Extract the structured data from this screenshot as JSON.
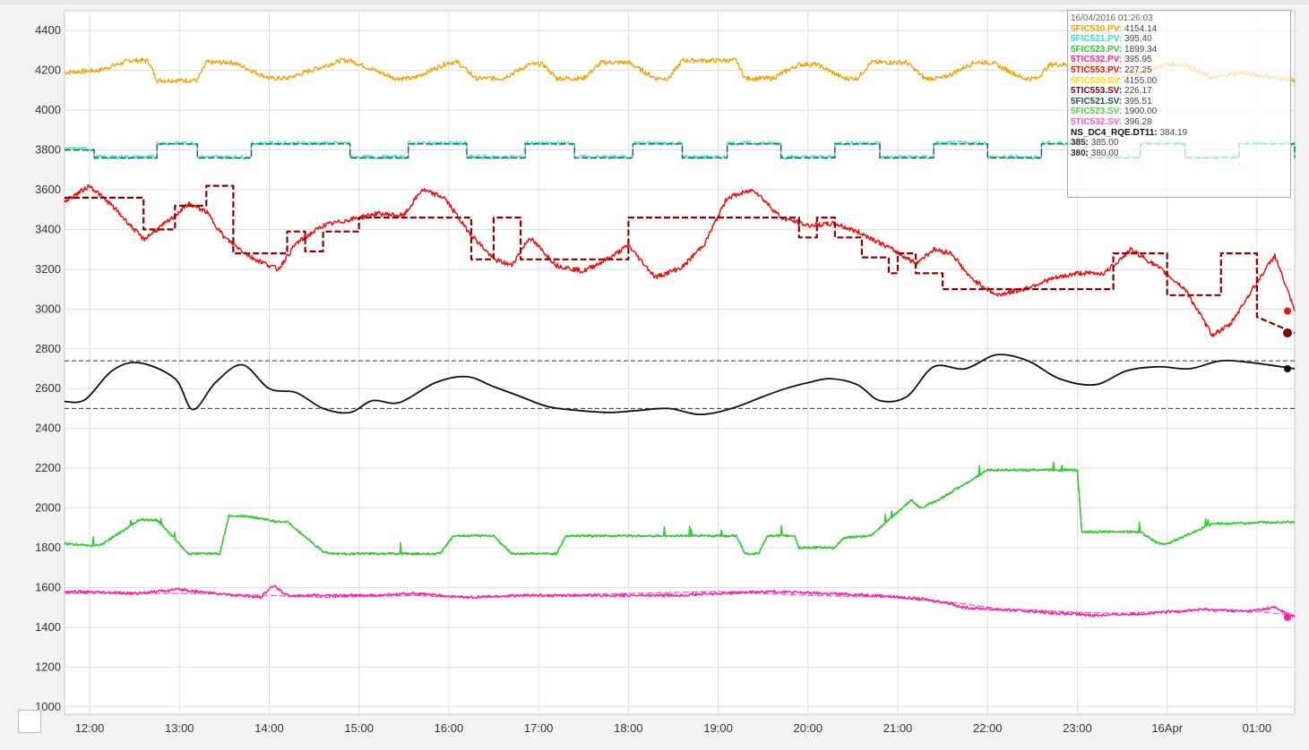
{
  "chart_data": {
    "type": "line",
    "title": "",
    "xlabel": "",
    "ylabel": "",
    "ylim": [
      1000,
      4450
    ],
    "y_ticks": [
      "1000",
      "1200",
      "1400",
      "1600",
      "1800",
      "2000",
      "2200",
      "2400",
      "2600",
      "2800",
      "3000",
      "3200",
      "3400",
      "3600",
      "3800",
      "4000",
      "4200",
      "4400"
    ],
    "x_ticks": [
      "12:00",
      "13:00",
      "14:00",
      "15:00",
      "16:00",
      "17:00",
      "18:00",
      "19:00",
      "20:00",
      "21:00",
      "22:00",
      "23:00",
      "16Apr",
      "01:00"
    ],
    "x_unit": "hours from 12:00 on 15/04/2016",
    "xlim": [
      -0.28,
      13.42
    ],
    "grid": true,
    "legend_position": "top-right",
    "legend": {
      "timestamp": "16/04/2016 01:26:03",
      "entries": [
        {
          "name": "5FIC530.PV:",
          "value": "4154.14",
          "color": "#f5a000"
        },
        {
          "name": "5FIC521.PV:",
          "value": "395.40",
          "color": "#2ee6c8"
        },
        {
          "name": "5FIC523.PV:",
          "value": "1899.34",
          "color": "#2ecc2e"
        },
        {
          "name": "5TIC532.PV:",
          "value": "395.95",
          "color": "#ff1fa0"
        },
        {
          "name": "5TIC553.PV:",
          "value": "227.25",
          "color": "#ee1111"
        },
        {
          "name": "5FIC530.SV:",
          "value": "4155.00",
          "color": "#f0e000"
        },
        {
          "name": "5TIC553.SV:",
          "value": "226.17",
          "color": "#8b0000"
        },
        {
          "name": "5FIC521.SV:",
          "value": "395.51",
          "color": "#1f4f4f"
        },
        {
          "name": "5FIC523.SV:",
          "value": "1900.00",
          "color": "#4cd44c"
        },
        {
          "name": "5TIC532.SV:",
          "value": "396.28",
          "color": "#ff55cc"
        },
        {
          "name": "NS_DC4_RQE.DT11:",
          "value": "384.19",
          "color": "#111111"
        },
        {
          "name": "385:",
          "value": "385.00",
          "color": "#333333"
        },
        {
          "name": "380:",
          "value": "380.00",
          "color": "#333333"
        }
      ]
    },
    "series": [
      {
        "key": "fic530_pv",
        "color": "#f5a000",
        "style": "solid",
        "noise": 12,
        "x": [
          -0.28,
          0.1,
          0.45,
          0.65,
          0.75,
          1.2,
          1.3,
          1.6,
          2.0,
          2.2,
          2.8,
          2.9,
          3.4,
          3.6,
          4.0,
          4.1,
          4.3,
          4.6,
          4.9,
          5.05,
          5.2,
          5.5,
          5.7,
          6.0,
          6.3,
          6.45,
          6.6,
          7.2,
          7.3,
          7.6,
          7.9,
          8.1,
          8.4,
          8.55,
          8.7,
          9.1,
          9.3,
          9.5,
          9.85,
          10.05,
          10.4,
          10.55,
          10.7,
          11.3,
          11.45,
          12.0,
          12.2,
          12.5,
          12.8,
          13.42
        ],
        "y": [
          4190,
          4200,
          4250,
          4250,
          4150,
          4150,
          4240,
          4240,
          4160,
          4160,
          4250,
          4250,
          4160,
          4160,
          4240,
          4240,
          4160,
          4160,
          4230,
          4230,
          4160,
          4160,
          4240,
          4240,
          4160,
          4160,
          4250,
          4250,
          4160,
          4160,
          4230,
          4230,
          4160,
          4160,
          4240,
          4240,
          4160,
          4160,
          4240,
          4240,
          4160,
          4160,
          4230,
          4230,
          4160,
          4230,
          4230,
          4160,
          4190,
          4150
        ]
      },
      {
        "key": "fic521_sv",
        "color": "#1f4f4f",
        "style": "dashed",
        "noise": 0,
        "step_x": [
          -0.28,
          0.05,
          0.55,
          0.75,
          1.0,
          1.2,
          1.55,
          1.8,
          2.5,
          2.9,
          3.3,
          3.55,
          4.0,
          4.2,
          4.6,
          4.85,
          5.2,
          5.4,
          5.8,
          6.05,
          6.4,
          6.6,
          6.9,
          7.1,
          7.5,
          7.7,
          8.1,
          8.3,
          8.6,
          8.8,
          9.2,
          9.4,
          9.8,
          10.0,
          10.4,
          10.6,
          10.9,
          11.1,
          11.5,
          11.7,
          12.0,
          12.2,
          12.6,
          12.8,
          13.42
        ],
        "step_y": [
          3800,
          3760,
          3760,
          3830,
          3830,
          3760,
          3760,
          3830,
          3830,
          3760,
          3760,
          3830,
          3830,
          3760,
          3760,
          3830,
          3830,
          3760,
          3760,
          3830,
          3830,
          3760,
          3760,
          3830,
          3830,
          3760,
          3760,
          3830,
          3830,
          3760,
          3760,
          3830,
          3830,
          3760,
          3760,
          3830,
          3830,
          3760,
          3760,
          3830,
          3830,
          3760,
          3760,
          3830,
          3760
        ]
      },
      {
        "key": "fic521_pv",
        "color": "#2ee6c8",
        "style": "solid",
        "noise": 10,
        "follow": "fic521_sv",
        "offset": 4
      },
      {
        "key": "tic553_sv",
        "color": "#8b0000",
        "style": "dashed",
        "noise": 0,
        "width": 2.2,
        "step_x": [
          -0.28,
          0.1,
          0.6,
          0.95,
          1.3,
          1.6,
          1.95,
          2.2,
          2.4,
          2.6,
          3.0,
          3.3,
          4.0,
          4.25,
          4.5,
          4.8,
          5.15,
          5.3,
          6.0,
          6.5,
          7.5,
          7.9,
          8.1,
          8.3,
          8.6,
          8.9,
          9.0,
          9.2,
          9.5,
          10.0,
          10.8,
          11.4,
          11.7,
          12.0,
          12.3,
          12.6,
          13.0
        ],
        "step_y": [
          3560,
          3560,
          3400,
          3520,
          3620,
          3280,
          3280,
          3390,
          3290,
          3390,
          3460,
          3460,
          3460,
          3250,
          3460,
          3250,
          3250,
          3250,
          3460,
          3460,
          3460,
          3360,
          3460,
          3360,
          3260,
          3180,
          3280,
          3180,
          3100,
          3100,
          3100,
          3280,
          3280,
          3070,
          3070,
          3280,
          2960
        ],
        "end_y": 2880,
        "end_marker": true
      },
      {
        "key": "tic553_pv",
        "color": "#ee1111",
        "style": "solid",
        "noise": 12,
        "width": 1.5,
        "x": [
          -0.28,
          0.0,
          0.25,
          0.6,
          0.9,
          1.1,
          1.3,
          1.5,
          1.8,
          2.1,
          2.3,
          2.6,
          2.9,
          3.2,
          3.5,
          3.7,
          3.95,
          4.2,
          4.5,
          4.7,
          4.9,
          5.2,
          5.5,
          5.8,
          6.0,
          6.3,
          6.6,
          6.85,
          7.1,
          7.4,
          7.7,
          8.0,
          8.3,
          8.6,
          8.9,
          9.2,
          9.4,
          9.6,
          9.8,
          10.1,
          10.4,
          10.7,
          11.0,
          11.3,
          11.6,
          11.9,
          12.2,
          12.5,
          12.7,
          12.95,
          13.2,
          13.42
        ],
        "y": [
          3540,
          3620,
          3520,
          3350,
          3450,
          3530,
          3490,
          3360,
          3260,
          3200,
          3330,
          3420,
          3450,
          3480,
          3470,
          3600,
          3560,
          3400,
          3250,
          3220,
          3360,
          3220,
          3190,
          3260,
          3320,
          3160,
          3210,
          3330,
          3560,
          3600,
          3460,
          3420,
          3430,
          3380,
          3310,
          3230,
          3300,
          3280,
          3160,
          3070,
          3100,
          3150,
          3180,
          3180,
          3300,
          3210,
          3100,
          2870,
          2920,
          3100,
          3270,
          2990
        ],
        "end_marker": true
      },
      {
        "key": "dt11",
        "color": "#111111",
        "style": "solid",
        "noise": 0,
        "width": 1.8,
        "smooth": true,
        "x": [
          -0.28,
          -0.05,
          0.25,
          0.55,
          0.95,
          1.15,
          1.4,
          1.7,
          2.0,
          2.3,
          2.6,
          2.9,
          3.15,
          3.45,
          3.85,
          4.2,
          4.5,
          4.8,
          5.1,
          5.45,
          5.8,
          6.1,
          6.45,
          6.8,
          7.15,
          7.5,
          7.75,
          8.0,
          8.25,
          8.55,
          8.8,
          9.1,
          9.4,
          9.75,
          10.1,
          10.45,
          10.8,
          11.2,
          11.55,
          11.9,
          12.25,
          12.6,
          12.95,
          13.42
        ],
        "y": [
          2535,
          2545,
          2690,
          2730,
          2650,
          2495,
          2630,
          2720,
          2600,
          2580,
          2500,
          2480,
          2540,
          2530,
          2630,
          2660,
          2610,
          2560,
          2510,
          2490,
          2480,
          2490,
          2500,
          2470,
          2500,
          2560,
          2600,
          2630,
          2650,
          2620,
          2540,
          2560,
          2710,
          2700,
          2770,
          2740,
          2650,
          2620,
          2690,
          2710,
          2700,
          2740,
          2730,
          2700
        ],
        "end_marker": true
      },
      {
        "key": "limit_385",
        "color": "#333333",
        "style": "dashed",
        "noise": 0,
        "width": 1,
        "x": [
          -0.28,
          13.42
        ],
        "y": [
          2740,
          2740
        ]
      },
      {
        "key": "limit_380",
        "color": "#333333",
        "style": "dashed",
        "noise": 0,
        "width": 1,
        "x": [
          -0.28,
          13.42
        ],
        "y": [
          2500,
          2500
        ]
      },
      {
        "key": "fic523_sv",
        "color": "#4cd44c",
        "style": "dashed",
        "noise": 0,
        "width": 1.5,
        "x": [
          -0.28,
          0.05,
          0.15,
          0.55,
          0.75,
          1.1,
          1.45,
          1.55,
          1.75,
          2.1,
          2.2,
          2.6,
          2.7,
          3.4,
          3.5,
          3.9,
          4.05,
          4.3,
          4.5,
          4.7,
          4.8,
          5.2,
          5.3,
          6.0,
          6.1,
          6.8,
          6.9,
          7.2,
          7.3,
          7.45,
          7.55,
          7.85,
          7.9,
          8.05,
          8.3,
          8.4,
          8.7,
          9.15,
          9.25,
          9.45,
          10.0,
          11.0,
          11.05,
          11.6,
          11.7,
          11.9,
          12.0,
          12.5,
          13.42
        ],
        "y": [
          1820,
          1810,
          1820,
          1940,
          1940,
          1770,
          1770,
          1960,
          1960,
          1930,
          1930,
          1780,
          1770,
          1770,
          1770,
          1770,
          1860,
          1860,
          1860,
          1770,
          1770,
          1770,
          1860,
          1860,
          1860,
          1860,
          1860,
          1860,
          1770,
          1770,
          1860,
          1860,
          1800,
          1800,
          1800,
          1850,
          1860,
          2040,
          2000,
          2040,
          2190,
          2190,
          1880,
          1880,
          1880,
          1820,
          1820,
          1920,
          1930
        ]
      },
      {
        "key": "fic523_pv",
        "color": "#2ecc2e",
        "style": "solid",
        "noise": 6,
        "width": 1.5,
        "follow": "fic523_sv",
        "offset": 0,
        "spikes": true
      },
      {
        "key": "tic532_sv",
        "color": "#ff55cc",
        "style": "dashed",
        "noise": 0,
        "width": 1.3,
        "x": [
          -0.28,
          1.0,
          1.3,
          2.0,
          2.6,
          3.6,
          4.2,
          5.0,
          6.0,
          7.0,
          8.0,
          9.0,
          9.7,
          10.2,
          10.6,
          11.0,
          11.5,
          12.0,
          12.5,
          13.0,
          13.42
        ],
        "y": [
          1570,
          1570,
          1570,
          1560,
          1550,
          1560,
          1550,
          1560,
          1570,
          1580,
          1560,
          1550,
          1520,
          1490,
          1485,
          1475,
          1470,
          1480,
          1490,
          1480,
          1460
        ]
      },
      {
        "key": "tic532_pv",
        "color": "#ff1fa0",
        "style": "solid",
        "noise": 7,
        "width": 1.5,
        "x": [
          -0.28,
          0.5,
          1.0,
          1.4,
          1.9,
          2.05,
          2.2,
          2.6,
          3.2,
          3.6,
          4.2,
          4.8,
          5.4,
          6.0,
          6.5,
          7.0,
          7.6,
          8.2,
          8.8,
          9.3,
          9.6,
          9.7,
          10.1,
          10.5,
          10.8,
          11.2,
          11.8,
          12.4,
          12.9,
          13.2,
          13.42
        ],
        "y": [
          1580,
          1570,
          1590,
          1570,
          1550,
          1610,
          1560,
          1560,
          1560,
          1570,
          1550,
          1560,
          1560,
          1560,
          1560,
          1570,
          1580,
          1570,
          1560,
          1540,
          1520,
          1500,
          1490,
          1480,
          1470,
          1460,
          1470,
          1490,
          1480,
          1500,
          1450
        ],
        "end_marker": true
      }
    ]
  }
}
